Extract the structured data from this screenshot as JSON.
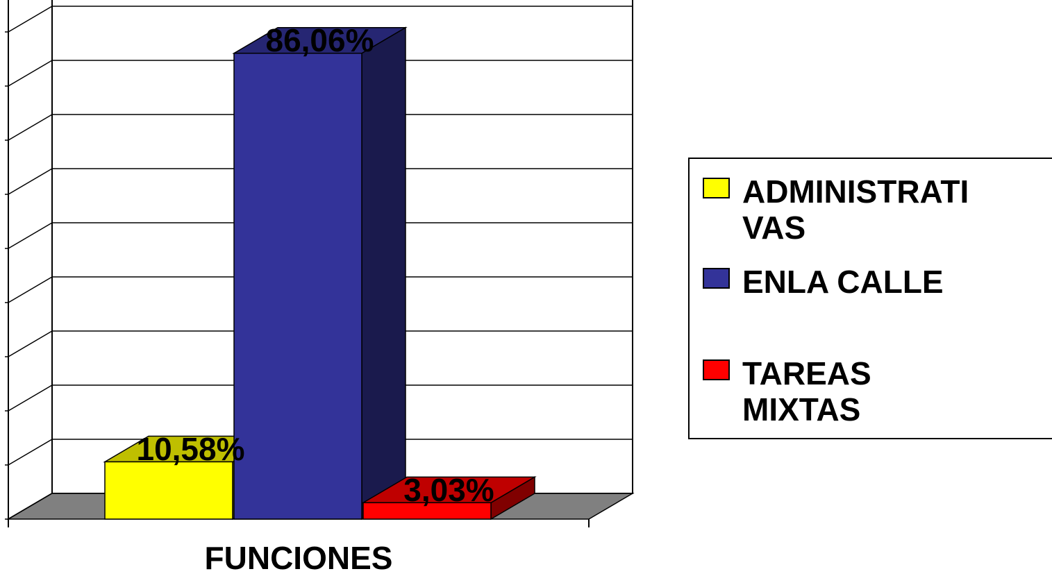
{
  "chart_data": {
    "type": "bar",
    "title": "",
    "xlabel": "FUNCIONES",
    "ylabel": "",
    "categories": [
      "FUNCIONES"
    ],
    "series": [
      {
        "name": "ADMINISTRATIVAS",
        "legend_lines": [
          "ADMINISTRATI",
          "VAS"
        ],
        "value": 10.58,
        "label": "10,58%",
        "color": "#FFFF00"
      },
      {
        "name": "ENLA CALLE",
        "legend_lines": [
          "ENLA CALLE"
        ],
        "value": 86.06,
        "label": "86,06%",
        "color": "#333399"
      },
      {
        "name": "TAREAS MIXTAS",
        "legend_lines": [
          "TAREAS",
          "MIXTAS"
        ],
        "value": 3.03,
        "label": "3,03%",
        "color": "#FF0000"
      }
    ],
    "ylim": [
      0,
      100
    ],
    "grid": true,
    "three_d": true,
    "legend_position": "right",
    "floor_color": "#808080"
  }
}
